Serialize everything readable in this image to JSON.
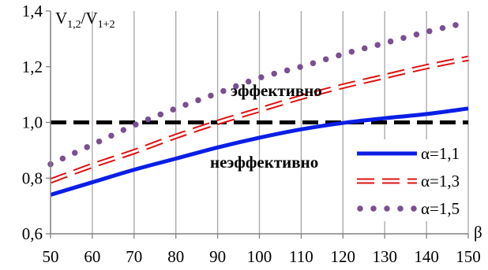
{
  "chart_data": {
    "type": "line",
    "ylabel_main": "V",
    "ylabel_sub1": "1,2",
    "ylabel_sep": "/V",
    "ylabel_sub2": "1+2",
    "xlabel": "β",
    "xlim": [
      50,
      150
    ],
    "ylim": [
      0.6,
      1.4
    ],
    "x_ticks": [
      50,
      60,
      70,
      80,
      90,
      100,
      110,
      120,
      130,
      140,
      150
    ],
    "x_tick_labels": [
      "50",
      "60",
      "70",
      "80",
      "90",
      "100",
      "110",
      "120",
      "130",
      "140",
      "150"
    ],
    "y_ticks": [
      0.6,
      0.8,
      1.0,
      1.2,
      1.4
    ],
    "y_tick_labels": [
      "0,6",
      "0,8",
      "1,0",
      "1,2",
      "1,4"
    ],
    "grid": "vertical",
    "legend_position": "bottom-right",
    "annotations": {
      "effective": "эффективно",
      "ineffective": "неэффективно"
    },
    "reference_line": {
      "y": 1.0,
      "style": "black-dashed"
    },
    "series": [
      {
        "name": "α=1,1",
        "style": "solid",
        "color": "#0b1ee6",
        "x": [
          50,
          60,
          70,
          80,
          90,
          100,
          110,
          120,
          130,
          140,
          150
        ],
        "y": [
          0.74,
          0.785,
          0.83,
          0.87,
          0.91,
          0.945,
          0.975,
          0.998,
          1.015,
          1.03,
          1.05
        ]
      },
      {
        "name": "α=1,3",
        "style": "dashed",
        "color": "#e01010",
        "x": [
          50,
          60,
          70,
          80,
          90,
          100,
          110,
          120,
          130,
          140,
          150
        ],
        "y": [
          0.79,
          0.845,
          0.895,
          0.95,
          1.0,
          1.045,
          1.09,
          1.13,
          1.165,
          1.2,
          1.23
        ]
      },
      {
        "name": "α=1,5",
        "style": "dotted",
        "color": "#7a4f92",
        "x": [
          50,
          60,
          70,
          80,
          90,
          100,
          110,
          120,
          130,
          140,
          150
        ],
        "y": [
          0.85,
          0.92,
          0.99,
          1.05,
          1.105,
          1.16,
          1.2,
          1.245,
          1.285,
          1.325,
          1.36
        ]
      }
    ]
  }
}
